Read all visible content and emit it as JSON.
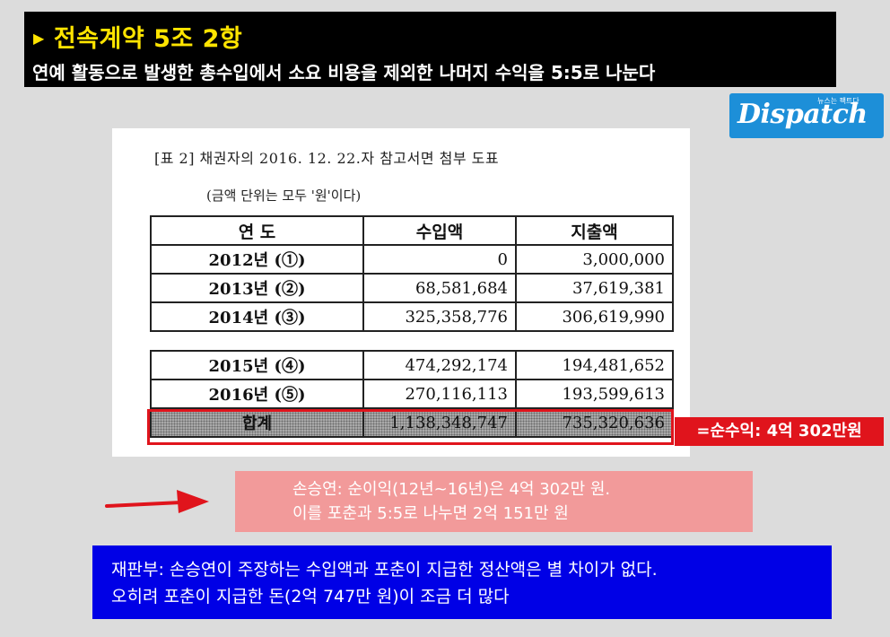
{
  "banner": {
    "title": "전속계약 5조 2항",
    "subtitle": "연예 활동으로 발생한 총수입에서 소요 비용을 제외한 나머지 수익을  5:5로 나눈다"
  },
  "logo": {
    "word": "Dispatch",
    "tagline": "뉴스는 팩트다"
  },
  "document": {
    "title": "[표 2] 채권자의 2016. 12. 22.자 참고서면 첨부 도표",
    "note": "(금액 단위는 모두 '원'이다)",
    "headers": [
      "연 도",
      "수입액",
      "지출액"
    ],
    "rows_top": [
      {
        "year": "2012년 (①)",
        "income": "0",
        "expense": "3,000,000"
      },
      {
        "year": "2013년 (②)",
        "income": "68,581,684",
        "expense": "37,619,381"
      },
      {
        "year": "2014년 (③)",
        "income": "325,358,776",
        "expense": "306,619,990"
      }
    ],
    "rows_bottom": [
      {
        "year": "2015년 (④)",
        "income": "474,292,174",
        "expense": "194,481,652"
      },
      {
        "year": "2016년 (⑤)",
        "income": "270,116,113",
        "expense": "193,599,613"
      }
    ],
    "total": {
      "year": "합계",
      "income": "1,138,348,747",
      "expense": "735,320,636"
    }
  },
  "net_label": "=순수익: 4억 302만원",
  "claim": {
    "line1": "손승연:  순이익(12년~16년)은 4억 302만 원.",
    "line2": "이를 포춘과 5:5로 나누면 2억 151만 원"
  },
  "court": {
    "line1": "재판부: 손승연이 주장하는 수입액과 포춘이 지급한 정산액은 별 차이가 없다.",
    "line2": "오히려 포춘이 지급한 돈(2억 747만 원)이 조금 더 많다"
  },
  "colors": {
    "banner_bg": "#000000",
    "title_yellow": "#ffe400",
    "highlight_red": "#e0141c",
    "claim_pink": "#f29a9a",
    "court_blue": "#0000e6",
    "logo_blue": "#1d8fd8"
  },
  "icons": [
    "triangle-bullet-icon",
    "red-arrow-icon"
  ]
}
